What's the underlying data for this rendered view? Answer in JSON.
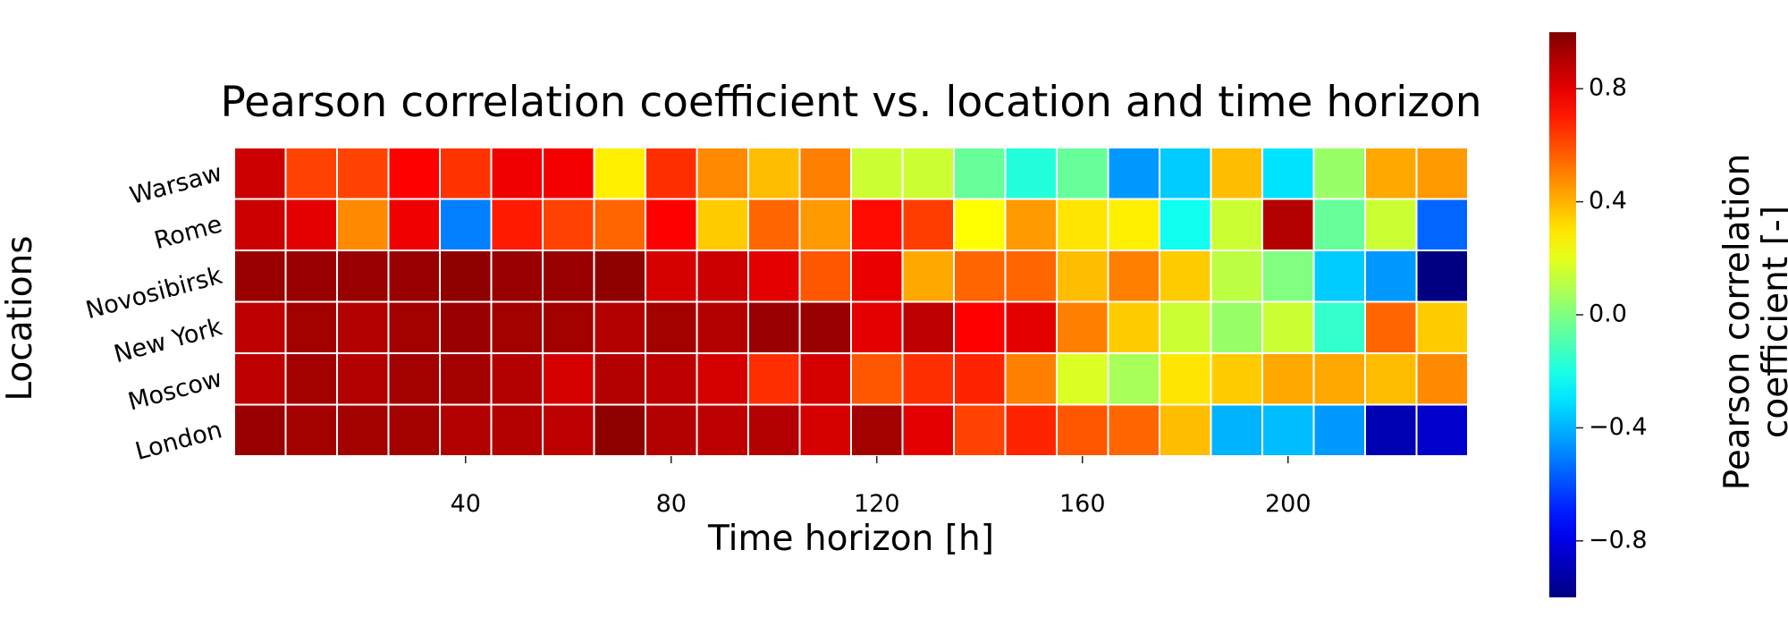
{
  "chart_data": {
    "type": "heatmap",
    "title": "Pearson correlation coefficient vs. location and time horizon",
    "xlabel": "Time horizon [h]",
    "ylabel": "Locations",
    "colorbar_label": "Pearson correlation coefficient [-]",
    "colorbar_label_lines": [
      "Pearson correlation",
      "coefficient [-]"
    ],
    "colormap": "jet",
    "vmin": -1.0,
    "vmax": 1.0,
    "colorbar_ticks": [
      0.8,
      0.4,
      0.0,
      -0.4,
      -0.8
    ],
    "colorbar_tick_labels": [
      "0.8",
      "0.4",
      "0.0",
      "−0.4",
      "−0.8"
    ],
    "x_ticks": [
      40,
      80,
      120,
      160,
      200
    ],
    "x_tick_labels": [
      "40",
      "80",
      "120",
      "160",
      "200"
    ],
    "x": [
      0,
      10,
      20,
      30,
      40,
      50,
      60,
      70,
      80,
      90,
      100,
      110,
      120,
      130,
      140,
      150,
      160,
      170,
      180,
      190,
      200,
      210,
      220,
      230
    ],
    "rows": [
      "Warsaw",
      "Rome",
      "Novosibirsk",
      "New York",
      "Moscow",
      "London"
    ],
    "values": [
      [
        0.85,
        0.62,
        0.62,
        0.75,
        0.65,
        0.78,
        0.77,
        0.28,
        0.66,
        0.48,
        0.38,
        0.5,
        0.15,
        0.15,
        -0.05,
        -0.18,
        -0.05,
        -0.45,
        -0.35,
        0.38,
        -0.3,
        0.05,
        0.42,
        0.45
      ],
      [
        0.85,
        0.8,
        0.48,
        0.78,
        -0.5,
        0.7,
        0.62,
        0.55,
        0.75,
        0.35,
        0.55,
        0.45,
        0.73,
        0.63,
        0.25,
        0.45,
        0.3,
        0.28,
        -0.22,
        0.15,
        0.9,
        -0.05,
        0.15,
        -0.55
      ],
      [
        0.95,
        0.95,
        0.95,
        0.95,
        0.97,
        0.95,
        0.95,
        0.97,
        0.83,
        0.85,
        0.8,
        0.58,
        0.79,
        0.42,
        0.55,
        0.55,
        0.38,
        0.5,
        0.35,
        0.12,
        0.0,
        -0.35,
        -0.45,
        -1.0
      ],
      [
        0.88,
        0.93,
        0.9,
        0.93,
        0.95,
        0.93,
        0.93,
        0.9,
        0.93,
        0.9,
        0.95,
        0.95,
        0.8,
        0.88,
        0.75,
        0.8,
        0.5,
        0.35,
        0.15,
        0.05,
        0.15,
        -0.15,
        0.55,
        0.35
      ],
      [
        0.88,
        0.93,
        0.9,
        0.93,
        0.93,
        0.9,
        0.83,
        0.9,
        0.88,
        0.83,
        0.66,
        0.83,
        0.58,
        0.66,
        0.68,
        0.5,
        0.18,
        0.08,
        0.3,
        0.35,
        0.42,
        0.42,
        0.38,
        0.48
      ],
      [
        0.95,
        0.93,
        0.93,
        0.93,
        0.9,
        0.9,
        0.88,
        0.97,
        0.9,
        0.88,
        0.9,
        0.83,
        0.93,
        0.8,
        0.62,
        0.68,
        0.58,
        0.55,
        0.38,
        -0.4,
        -0.38,
        -0.45,
        -0.9,
        -0.85
      ]
    ]
  }
}
